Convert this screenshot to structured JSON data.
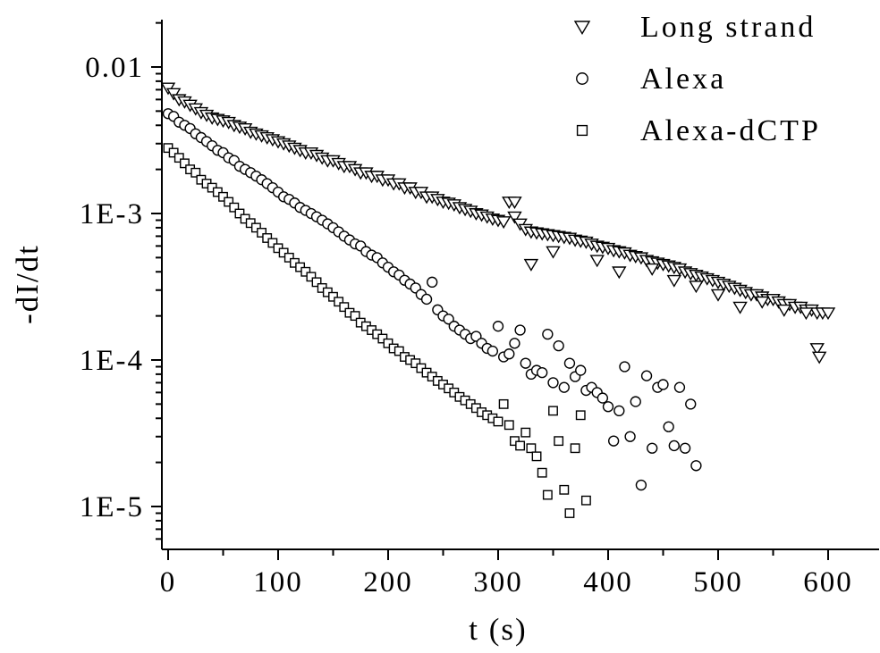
{
  "chart_data": {
    "type": "scatter",
    "title": "",
    "xlabel": "t (s)",
    "ylabel": "-dI/dt",
    "xlim": [
      -5,
      650
    ],
    "ylim": [
      5e-06,
      0.02
    ],
    "yscale": "log",
    "grid": false,
    "legend_position": "top-right",
    "x_ticks": [
      0,
      100,
      200,
      300,
      400,
      500,
      600
    ],
    "x_tick_labels": [
      "0",
      "100",
      "200",
      "300",
      "400",
      "500",
      "600"
    ],
    "y_ticks": [
      1e-05,
      0.0001,
      0.001,
      0.01
    ],
    "y_tick_labels": [
      "1E-5",
      "1E-4",
      "1E-3",
      "0.01"
    ],
    "series": [
      {
        "name": "Long strand",
        "marker": "triangle-down",
        "x": [
          0,
          5,
          10,
          15,
          20,
          25,
          30,
          35,
          40,
          45,
          50,
          55,
          60,
          65,
          70,
          75,
          80,
          85,
          90,
          95,
          100,
          105,
          110,
          115,
          120,
          125,
          130,
          135,
          140,
          145,
          150,
          155,
          160,
          165,
          170,
          175,
          180,
          185,
          190,
          195,
          200,
          205,
          210,
          215,
          220,
          225,
          230,
          235,
          240,
          245,
          250,
          255,
          260,
          265,
          270,
          275,
          280,
          285,
          290,
          295,
          300,
          305,
          310,
          315,
          320,
          325,
          330,
          335,
          340,
          345,
          350,
          355,
          360,
          365,
          370,
          375,
          380,
          385,
          390,
          395,
          400,
          405,
          410,
          415,
          420,
          425,
          430,
          435,
          440,
          445,
          450,
          455,
          460,
          465,
          470,
          475,
          480,
          485,
          490,
          495,
          500,
          505,
          510,
          515,
          520,
          525,
          530,
          535,
          540,
          545,
          550,
          555,
          560,
          565,
          570,
          575,
          580,
          585,
          590,
          595,
          600,
          315,
          330,
          350,
          390,
          410,
          440,
          460,
          480,
          500,
          520,
          540,
          560,
          580,
          590,
          592
        ],
        "y": [
          0.0072,
          0.0066,
          0.006,
          0.0058,
          0.0055,
          0.0052,
          0.0049,
          0.0047,
          0.0045,
          0.0044,
          0.0043,
          0.0042,
          0.004,
          0.0039,
          0.0038,
          0.0036,
          0.0035,
          0.0034,
          0.0033,
          0.0032,
          0.0031,
          0.003,
          0.0029,
          0.0028,
          0.0027,
          0.0026,
          0.0026,
          0.0025,
          0.0024,
          0.0023,
          0.0023,
          0.0022,
          0.0021,
          0.0021,
          0.002,
          0.0019,
          0.0019,
          0.0018,
          0.0018,
          0.0017,
          0.0017,
          0.0016,
          0.0016,
          0.0015,
          0.0015,
          0.0014,
          0.0014,
          0.0013,
          0.0013,
          0.00125,
          0.0012,
          0.00118,
          0.00115,
          0.0011,
          0.00107,
          0.00104,
          0.001,
          0.00098,
          0.00095,
          0.00092,
          0.0009,
          0.00088,
          0.0012,
          0.00095,
          0.00085,
          0.00078,
          0.00075,
          0.00074,
          0.00073,
          0.00072,
          0.00071,
          0.0007,
          0.00069,
          0.00068,
          0.00066,
          0.00065,
          0.00064,
          0.00062,
          0.0006,
          0.00059,
          0.00058,
          0.00056,
          0.00055,
          0.00054,
          0.00052,
          0.00051,
          0.0005,
          0.00048,
          0.00047,
          0.00046,
          0.00045,
          0.00044,
          0.00043,
          0.00042,
          0.0004,
          0.00039,
          0.00038,
          0.00037,
          0.00036,
          0.00035,
          0.00034,
          0.00033,
          0.00032,
          0.00031,
          0.0003,
          0.00029,
          0.00028,
          0.00028,
          0.00027,
          0.00026,
          0.00026,
          0.00025,
          0.00024,
          0.00024,
          0.00023,
          0.00023,
          0.00022,
          0.00022,
          0.00021,
          0.00021,
          0.00021,
          0.0012,
          0.00045,
          0.00055,
          0.00048,
          0.0004,
          0.00042,
          0.00035,
          0.00032,
          0.00028,
          0.00023,
          0.00025,
          0.00022,
          0.00021,
          0.00012,
          0.000105
        ]
      },
      {
        "name": "Alexa",
        "marker": "circle",
        "x": [
          0,
          5,
          10,
          15,
          20,
          25,
          30,
          35,
          40,
          45,
          50,
          55,
          60,
          65,
          70,
          75,
          80,
          85,
          90,
          95,
          100,
          105,
          110,
          115,
          120,
          125,
          130,
          135,
          140,
          145,
          150,
          155,
          160,
          165,
          170,
          175,
          180,
          185,
          190,
          195,
          200,
          205,
          210,
          215,
          220,
          225,
          230,
          235,
          240,
          245,
          250,
          255,
          260,
          265,
          270,
          275,
          280,
          285,
          290,
          295,
          300,
          305,
          310,
          315,
          320,
          325,
          330,
          335,
          340,
          345,
          350,
          355,
          360,
          365,
          370,
          375,
          380,
          385,
          390,
          395,
          400,
          405,
          410,
          415,
          420,
          425,
          430,
          435,
          440,
          445,
          450,
          455,
          460,
          465,
          470,
          475,
          480
        ],
        "y": [
          0.0048,
          0.0046,
          0.0042,
          0.004,
          0.0038,
          0.0035,
          0.0033,
          0.0031,
          0.0029,
          0.0027,
          0.0026,
          0.0024,
          0.0023,
          0.0021,
          0.002,
          0.0019,
          0.0018,
          0.0017,
          0.0016,
          0.0015,
          0.0014,
          0.0013,
          0.00125,
          0.00118,
          0.0011,
          0.00105,
          0.001,
          0.00095,
          0.0009,
          0.00085,
          0.0008,
          0.00075,
          0.0007,
          0.00066,
          0.00062,
          0.0006,
          0.00055,
          0.00052,
          0.0005,
          0.00046,
          0.00043,
          0.0004,
          0.00038,
          0.00035,
          0.00033,
          0.00031,
          0.00028,
          0.00026,
          0.00034,
          0.00022,
          0.0002,
          0.00019,
          0.00017,
          0.00016,
          0.00015,
          0.00014,
          0.000145,
          0.00013,
          0.00012,
          0.000115,
          0.00017,
          0.000105,
          0.00011,
          0.00013,
          0.00016,
          9.5e-05,
          8e-05,
          8.5e-05,
          8.2e-05,
          0.00015,
          7e-05,
          0.000125,
          6.5e-05,
          9.5e-05,
          7.7e-05,
          8.5e-05,
          6.2e-05,
          6.5e-05,
          6e-05,
          5.5e-05,
          4.8e-05,
          2.8e-05,
          4.5e-05,
          9e-05,
          3e-05,
          5.2e-05,
          1.4e-05,
          7.8e-05,
          2.5e-05,
          6.5e-05,
          6.8e-05,
          3.5e-05,
          2.6e-05,
          6.5e-05,
          2.5e-05,
          5e-05,
          1.9e-05
        ]
      },
      {
        "name": "Alexa-dCTP",
        "marker": "square",
        "x": [
          0,
          5,
          10,
          15,
          20,
          25,
          30,
          35,
          40,
          45,
          50,
          55,
          60,
          65,
          70,
          75,
          80,
          85,
          90,
          95,
          100,
          105,
          110,
          115,
          120,
          125,
          130,
          135,
          140,
          145,
          150,
          155,
          160,
          165,
          170,
          175,
          180,
          185,
          190,
          195,
          200,
          205,
          210,
          215,
          220,
          225,
          230,
          235,
          240,
          245,
          250,
          255,
          260,
          265,
          270,
          275,
          280,
          285,
          290,
          295,
          300,
          305,
          310,
          315,
          320,
          325,
          330,
          335,
          340,
          345,
          350,
          355,
          360,
          365,
          370,
          375,
          380
        ],
        "y": [
          0.0028,
          0.0026,
          0.0024,
          0.0022,
          0.002,
          0.0019,
          0.0017,
          0.0016,
          0.0015,
          0.0014,
          0.0013,
          0.0012,
          0.0011,
          0.001,
          0.00092,
          0.00086,
          0.0008,
          0.00074,
          0.00068,
          0.00063,
          0.00058,
          0.00054,
          0.0005,
          0.00046,
          0.00043,
          0.0004,
          0.00037,
          0.00034,
          0.00031,
          0.00029,
          0.00027,
          0.00025,
          0.00023,
          0.00021,
          0.0002,
          0.00018,
          0.00017,
          0.00016,
          0.00015,
          0.00014,
          0.00013,
          0.00012,
          0.000115,
          0.000105,
          0.0001,
          9.5e-05,
          8.8e-05,
          8.2e-05,
          7.7e-05,
          7.2e-05,
          6.8e-05,
          6.4e-05,
          6e-05,
          5.6e-05,
          5.3e-05,
          5e-05,
          4.7e-05,
          4.4e-05,
          4.2e-05,
          4e-05,
          3.8e-05,
          5e-05,
          3.6e-05,
          2.8e-05,
          2.6e-05,
          3.2e-05,
          2.5e-05,
          2.2e-05,
          1.7e-05,
          1.2e-05,
          4.5e-05,
          2.8e-05,
          1.3e-05,
          9e-06,
          2.5e-05,
          4.2e-05,
          1.1e-05
        ]
      }
    ]
  }
}
